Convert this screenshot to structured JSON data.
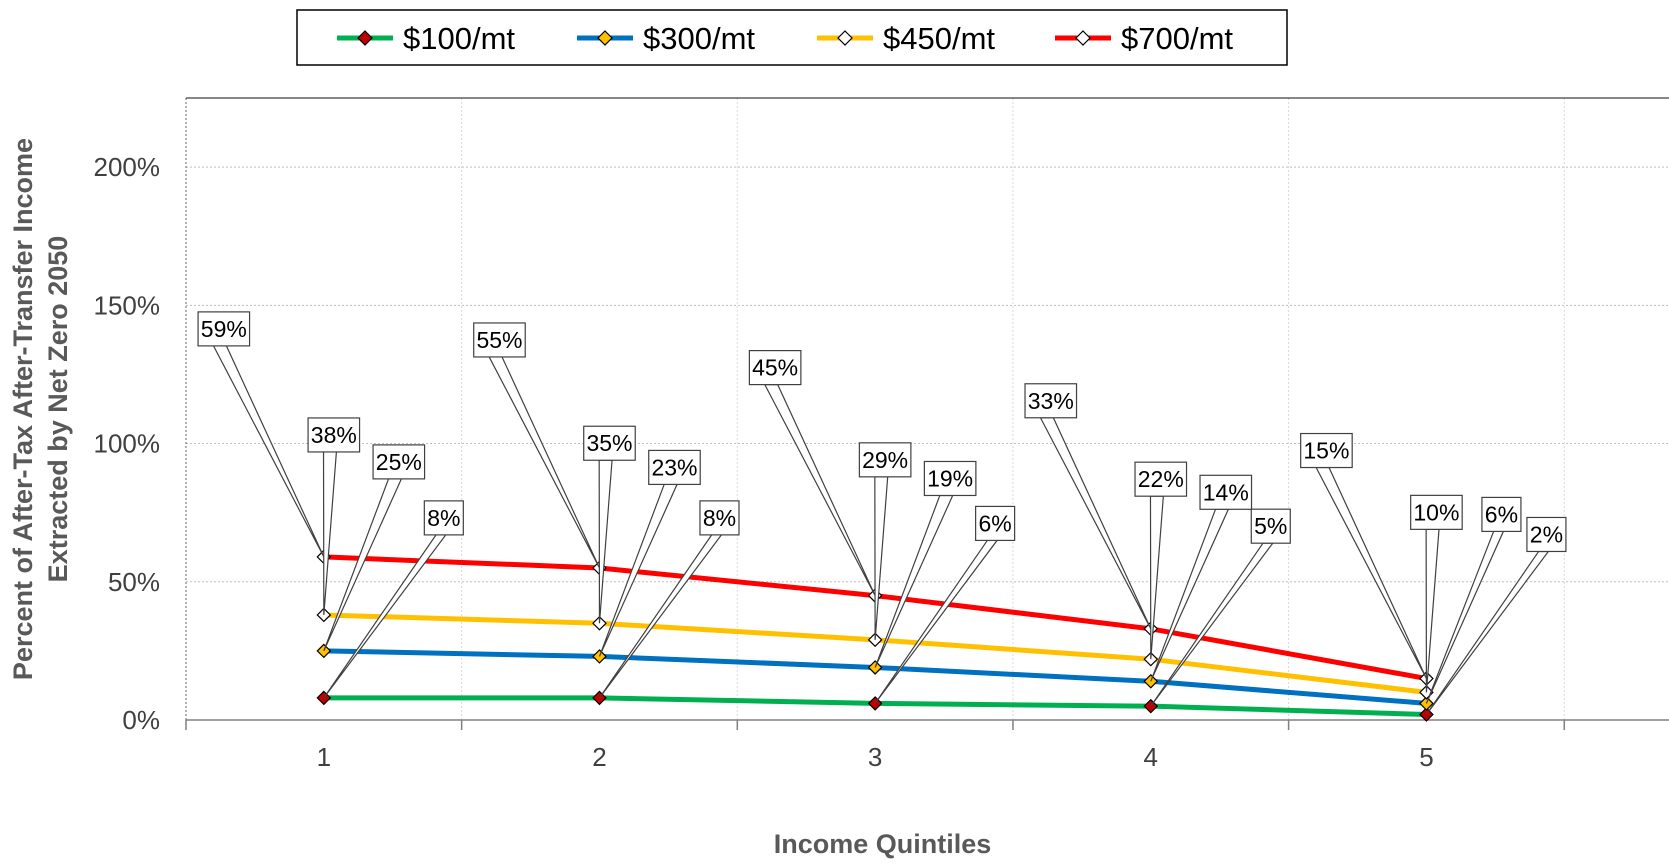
{
  "chart_data": {
    "type": "line",
    "xlabel": "Income Quintiles",
    "ylabel_lines": [
      "Percent of After-Tax After-Transfer Income",
      "Extracted by Net Zero 2050"
    ],
    "categories": [
      "1",
      "2",
      "3",
      "4",
      "5"
    ],
    "ylim": [
      0,
      2.25
    ],
    "yticks": [
      0,
      0.5,
      1.0,
      1.5,
      2.0
    ],
    "ytick_labels": [
      "0%",
      "50%",
      "100%",
      "150%",
      "200%"
    ],
    "grid": true,
    "legend_position": "top-center",
    "series": [
      {
        "name": "$100/mt",
        "color": "#00b050",
        "marker_fill": "#c00000",
        "values": [
          0.08,
          0.08,
          0.06,
          0.05,
          0.02
        ],
        "labels": [
          "8%",
          "8%",
          "6%",
          "5%",
          "2%"
        ]
      },
      {
        "name": "$300/mt",
        "color": "#0070c0",
        "marker_fill": "#ffc000",
        "values": [
          0.25,
          0.23,
          0.19,
          0.14,
          0.06
        ],
        "labels": [
          "25%",
          "23%",
          "19%",
          "14%",
          "6%"
        ]
      },
      {
        "name": "$450/mt",
        "color": "#ffc000",
        "marker_fill": "#ffffff",
        "values": [
          0.38,
          0.35,
          0.29,
          0.22,
          0.1
        ],
        "labels": [
          "38%",
          "35%",
          "29%",
          "22%",
          "10%"
        ]
      },
      {
        "name": "$700/mt",
        "color": "#ff0000",
        "marker_fill": "#ffffff",
        "values": [
          0.59,
          0.55,
          0.45,
          0.33,
          0.15
        ],
        "labels": [
          "59%",
          "55%",
          "45%",
          "33%",
          "15%"
        ]
      }
    ]
  }
}
